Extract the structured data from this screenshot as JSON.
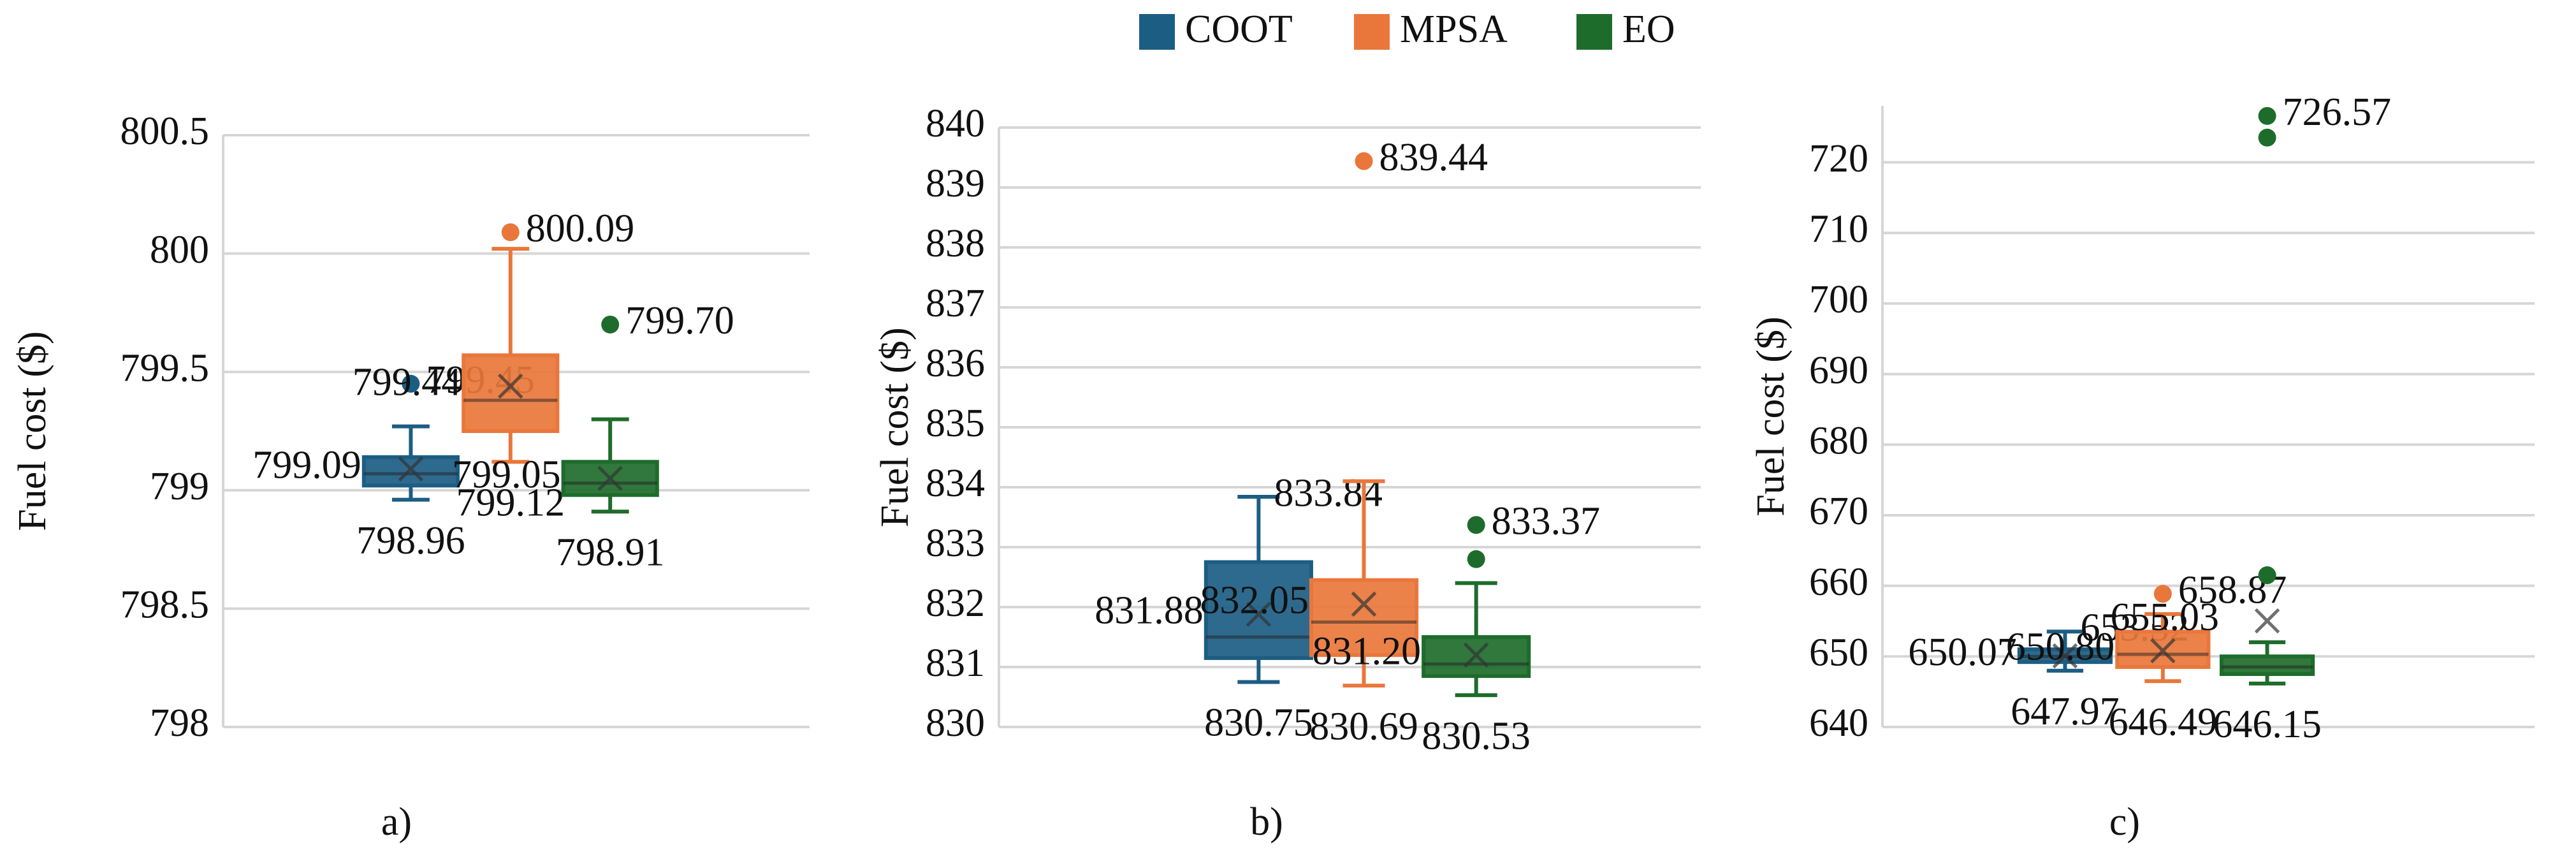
{
  "legend": [
    {
      "name": "COOT",
      "color": "#1c5d83"
    },
    {
      "name": "MPSA",
      "color": "#e9773b"
    },
    {
      "name": "EO",
      "color": "#1e6c2b"
    }
  ],
  "chart_data": [
    {
      "type": "box",
      "caption": "a)",
      "ylabel": "Fuel cost ($)",
      "ylim": [
        798,
        800.5
      ],
      "yticks": [
        798,
        798.5,
        799,
        799.5,
        800,
        800.5
      ],
      "grid": true,
      "boxes": [
        {
          "min": 798.96,
          "q1": 799.02,
          "median": 799.07,
          "q3": 799.14,
          "max": 799.27,
          "mean": 799.09,
          "outliers": [
            799.45
          ],
          "value_labels": [
            "799.45",
            "799.09",
            "798.96"
          ]
        },
        {
          "min": 799.12,
          "q1": 799.25,
          "median": 799.38,
          "q3": 799.57,
          "max": 800.02,
          "mean": 799.44,
          "outliers": [
            800.09
          ],
          "value_labels": [
            "800.09",
            "799.44",
            "799.12"
          ]
        },
        {
          "min": 798.91,
          "q1": 798.98,
          "median": 799.03,
          "q3": 799.12,
          "max": 799.3,
          "mean": 799.05,
          "outliers": [
            799.7
          ],
          "value_labels": [
            "799.70",
            "799.05",
            "798.91"
          ]
        }
      ]
    },
    {
      "type": "box",
      "caption": "b)",
      "ylabel": "Fuel cost ($)",
      "ylim": [
        830,
        840
      ],
      "yticks": [
        830,
        831,
        832,
        833,
        834,
        835,
        836,
        837,
        838,
        839,
        840
      ],
      "grid": true,
      "boxes": [
        {
          "min": 830.75,
          "q1": 831.15,
          "median": 831.5,
          "q3": 832.75,
          "max": 833.84,
          "mean": 831.88,
          "outliers": [],
          "value_labels": [
            "833.84",
            "831.88",
            "830.75"
          ]
        },
        {
          "min": 830.69,
          "q1": 831.2,
          "median": 831.75,
          "q3": 832.45,
          "max": 834.1,
          "mean": 832.05,
          "outliers": [
            839.44
          ],
          "value_labels": [
            "839.44",
            "832.05",
            "830.69"
          ]
        },
        {
          "min": 830.53,
          "q1": 830.85,
          "median": 831.05,
          "q3": 831.5,
          "max": 832.4,
          "mean": 831.2,
          "outliers": [
            832.8,
            833.37
          ],
          "value_labels": [
            "833.37",
            "831.20",
            "830.53"
          ]
        }
      ]
    },
    {
      "type": "box",
      "caption": "c)",
      "ylabel": "Fuel cost ($)",
      "ylim": [
        640,
        728
      ],
      "yticks": [
        640,
        650,
        660,
        670,
        680,
        690,
        700,
        710,
        720
      ],
      "grid": true,
      "boxes": [
        {
          "min": 647.97,
          "q1": 649.2,
          "median": 650,
          "q3": 651,
          "max": 653.52,
          "mean": 650.07,
          "outliers": [],
          "value_labels": [
            "653.52",
            "650.07",
            "647.97"
          ]
        },
        {
          "min": 646.49,
          "q1": 648.5,
          "median": 650.3,
          "q3": 653.5,
          "max": 656,
          "mean": 650.8,
          "outliers": [
            658.87
          ],
          "value_labels": [
            "658.87",
            "650.80",
            "646.49"
          ]
        },
        {
          "min": 646.15,
          "q1": 647.5,
          "median": 648.5,
          "q3": 650,
          "max": 652,
          "mean": 655.03,
          "outliers": [
            661.5,
            723.5,
            726.57
          ],
          "value_labels": [
            "726.57",
            "655.03",
            "646.15"
          ]
        }
      ]
    }
  ]
}
